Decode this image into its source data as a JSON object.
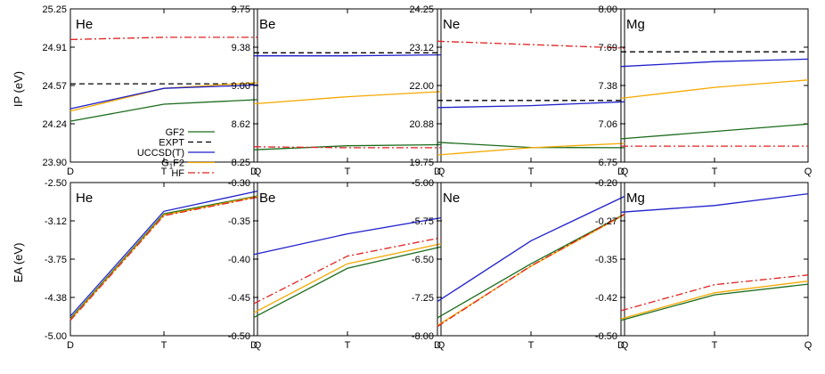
{
  "figure": {
    "row_labels": [
      "IP (eV)",
      "EA (eV)"
    ],
    "legend": [
      {
        "name": "GF2",
        "style": "GF2"
      },
      {
        "name": "EXPT",
        "style": "EXPT"
      },
      {
        "name": "UCCSD(T)",
        "style": "UCCSD"
      },
      {
        "name": "G1F2",
        "style": "G1F2",
        "sub_parts": [
          "G",
          "1",
          "F2"
        ]
      },
      {
        "name": "HF",
        "style": "HF"
      }
    ]
  },
  "styles": {
    "GF2": {
      "color": "#1b6b1b",
      "dash": ""
    },
    "EXPT": {
      "color": "#000000",
      "dash": "6,4"
    },
    "UCCSD": {
      "color": "#1f1fcc",
      "dash": ""
    },
    "G1F2": {
      "color": "#f5a800",
      "dash": ""
    },
    "HF": {
      "color": "#e02020",
      "dash": "8,3,2,3"
    }
  },
  "chart_data": [
    {
      "type": "line",
      "row": 0,
      "col": 0,
      "title": "He",
      "categories": [
        "D",
        "T",
        "Q"
      ],
      "ylim": [
        23.9,
        25.25
      ],
      "yticks": [
        "25.25",
        "24.91",
        "24.57",
        "24.24",
        "23.90"
      ],
      "series": [
        {
          "name": "EXPT",
          "style": "EXPT",
          "values": [
            24.59,
            24.59,
            24.59
          ]
        },
        {
          "name": "HF",
          "style": "HF",
          "values": [
            24.98,
            25.0,
            25.0
          ]
        },
        {
          "name": "G1F2",
          "style": "G1F2",
          "values": [
            24.35,
            24.55,
            24.6
          ]
        },
        {
          "name": "UCCSD(T)",
          "style": "UCCSD",
          "values": [
            24.37,
            24.55,
            24.58
          ]
        },
        {
          "name": "GF2",
          "style": "GF2",
          "values": [
            24.26,
            24.41,
            24.45
          ]
        }
      ]
    },
    {
      "type": "line",
      "row": 0,
      "col": 1,
      "title": "Be",
      "categories": [
        "D",
        "T",
        "Q"
      ],
      "ylim": [
        8.25,
        9.75
      ],
      "yticks": [
        "9.75",
        "9.38",
        "9.00",
        "8.62",
        "8.25"
      ],
      "series": [
        {
          "name": "EXPT",
          "style": "EXPT",
          "values": [
            9.32,
            9.32,
            9.32
          ]
        },
        {
          "name": "UCCSD(T)",
          "style": "UCCSD",
          "values": [
            9.29,
            9.29,
            9.3
          ]
        },
        {
          "name": "G1F2",
          "style": "G1F2",
          "values": [
            8.82,
            8.89,
            8.94
          ]
        },
        {
          "name": "GF2",
          "style": "GF2",
          "values": [
            8.37,
            8.41,
            8.42
          ]
        },
        {
          "name": "HF",
          "style": "HF",
          "values": [
            8.4,
            8.39,
            8.39
          ]
        }
      ]
    },
    {
      "type": "line",
      "row": 0,
      "col": 2,
      "title": "Ne",
      "categories": [
        "D",
        "T",
        "Q"
      ],
      "ylim": [
        19.75,
        24.25
      ],
      "yticks": [
        "24.25",
        "23.12",
        "22.00",
        "20.88",
        "19.75"
      ],
      "series": [
        {
          "name": "HF",
          "style": "HF",
          "values": [
            23.3,
            23.2,
            23.1
          ]
        },
        {
          "name": "EXPT",
          "style": "EXPT",
          "values": [
            21.56,
            21.56,
            21.56
          ]
        },
        {
          "name": "UCCSD(T)",
          "style": "UCCSD",
          "values": [
            21.35,
            21.41,
            21.52
          ]
        },
        {
          "name": "GF2",
          "style": "GF2",
          "values": [
            20.33,
            20.18,
            20.17
          ]
        },
        {
          "name": "G1F2",
          "style": "G1F2",
          "values": [
            19.96,
            20.17,
            20.3
          ]
        }
      ]
    },
    {
      "type": "line",
      "row": 0,
      "col": 3,
      "title": "Mg",
      "categories": [
        "D",
        "T",
        "Q"
      ],
      "ylim": [
        6.75,
        8.0
      ],
      "yticks": [
        "8.00",
        "7.69",
        "7.38",
        "7.06",
        "6.75"
      ],
      "series": [
        {
          "name": "EXPT",
          "style": "EXPT",
          "values": [
            7.65,
            7.65,
            7.65
          ]
        },
        {
          "name": "UCCSD(T)",
          "style": "UCCSD",
          "values": [
            7.53,
            7.57,
            7.59
          ]
        },
        {
          "name": "G1F2",
          "style": "G1F2",
          "values": [
            7.27,
            7.36,
            7.42
          ]
        },
        {
          "name": "GF2",
          "style": "GF2",
          "values": [
            6.94,
            7.0,
            7.06
          ]
        },
        {
          "name": "HF",
          "style": "HF",
          "values": [
            6.88,
            6.88,
            6.88
          ]
        }
      ]
    },
    {
      "type": "line",
      "row": 1,
      "col": 0,
      "title": "He",
      "categories": [
        "D",
        "T",
        "Q"
      ],
      "ylim": [
        -5.0,
        -2.5
      ],
      "yticks": [
        "-2.50",
        "-3.12",
        "-3.75",
        "-4.38",
        "-5.00"
      ],
      "series": [
        {
          "name": "UCCSD(T)",
          "style": "UCCSD",
          "values": [
            -4.68,
            -2.97,
            -2.64
          ]
        },
        {
          "name": "GF2",
          "style": "GF2",
          "values": [
            -4.72,
            -3.01,
            -2.72
          ]
        },
        {
          "name": "G1F2",
          "style": "G1F2",
          "values": [
            -4.74,
            -3.03,
            -2.73
          ]
        },
        {
          "name": "HF",
          "style": "HF",
          "values": [
            -4.75,
            -3.04,
            -2.74
          ]
        }
      ]
    },
    {
      "type": "line",
      "row": 1,
      "col": 1,
      "title": "Be",
      "categories": [
        "D",
        "T",
        "Q"
      ],
      "ylim": [
        -0.5,
        -0.3
      ],
      "yticks": [
        "-0.30",
        "-0.35",
        "-0.40",
        "-0.45",
        "-0.50"
      ],
      "series": [
        {
          "name": "UCCSD(T)",
          "style": "UCCSD",
          "values": [
            -0.394,
            -0.367,
            -0.346
          ]
        },
        {
          "name": "HF",
          "style": "HF",
          "values": [
            -0.458,
            -0.396,
            -0.372
          ]
        },
        {
          "name": "G1F2",
          "style": "G1F2",
          "values": [
            -0.47,
            -0.406,
            -0.38
          ]
        },
        {
          "name": "GF2",
          "style": "GF2",
          "values": [
            -0.476,
            -0.412,
            -0.384
          ]
        }
      ]
    },
    {
      "type": "line",
      "row": 1,
      "col": 2,
      "title": "Ne",
      "categories": [
        "D",
        "T",
        "Q"
      ],
      "ylim": [
        -8.0,
        -5.0
      ],
      "yticks": [
        "-5.00",
        "-5.75",
        "-6.50",
        "-7.25",
        "-8.00"
      ],
      "series": [
        {
          "name": "UCCSD(T)",
          "style": "UCCSD",
          "values": [
            -7.33,
            -6.14,
            -5.27
          ]
        },
        {
          "name": "GF2",
          "style": "GF2",
          "values": [
            -7.65,
            -6.59,
            -5.62
          ]
        },
        {
          "name": "G1F2",
          "style": "G1F2",
          "values": [
            -7.8,
            -6.64,
            -5.63
          ]
        },
        {
          "name": "HF",
          "style": "HF",
          "values": [
            -7.82,
            -6.63,
            -5.62
          ]
        }
      ]
    },
    {
      "type": "line",
      "row": 1,
      "col": 3,
      "title": "Mg",
      "categories": [
        "D",
        "T",
        "Q"
      ],
      "ylim": [
        -0.5,
        -0.2
      ],
      "yticks": [
        "-0.20",
        "-0.27",
        "-0.35",
        "-0.42",
        "-0.50"
      ],
      "series": [
        {
          "name": "UCCSD(T)",
          "style": "UCCSD",
          "values": [
            -0.258,
            -0.245,
            -0.222
          ]
        },
        {
          "name": "HF",
          "style": "HF",
          "values": [
            -0.451,
            -0.4,
            -0.381
          ]
        },
        {
          "name": "G1F2",
          "style": "G1F2",
          "values": [
            -0.467,
            -0.416,
            -0.393
          ]
        },
        {
          "name": "GF2",
          "style": "GF2",
          "values": [
            -0.47,
            -0.42,
            -0.399
          ]
        }
      ]
    }
  ]
}
